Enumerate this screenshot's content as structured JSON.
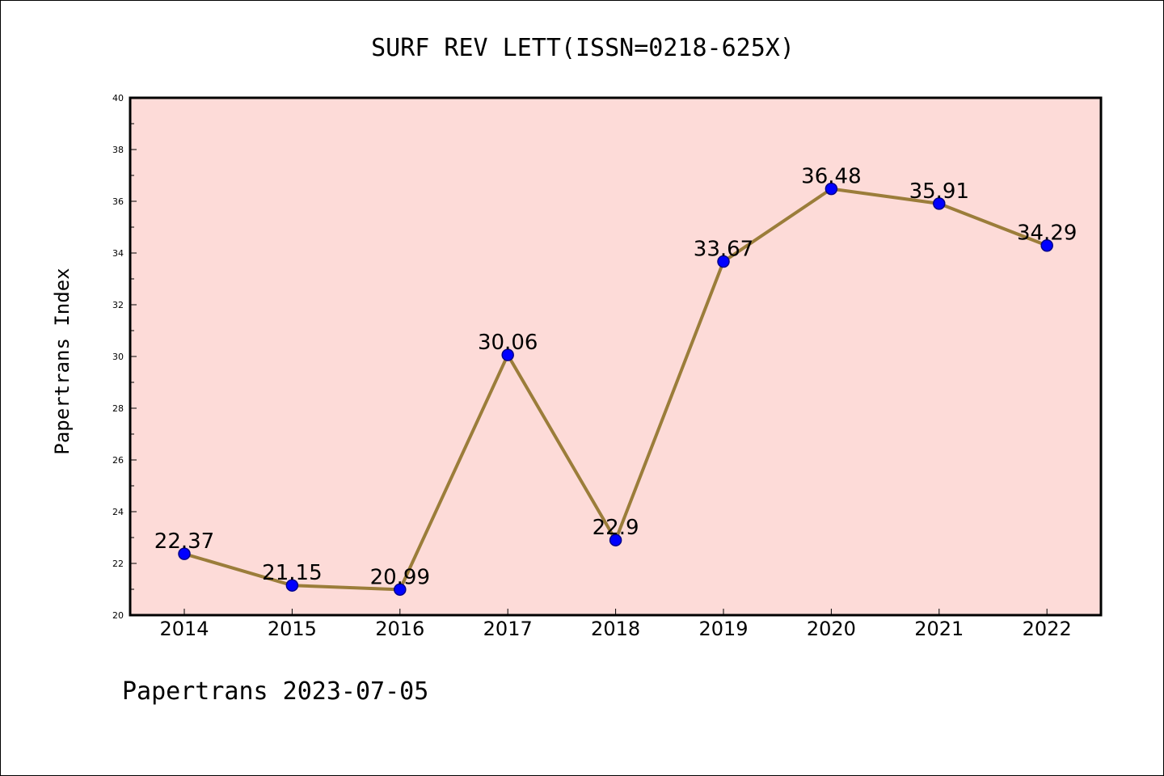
{
  "chart_data": {
    "type": "line",
    "title": "SURF REV LETT(ISSN=0218-625X)",
    "xlabel": "",
    "ylabel": "Papertrans Index",
    "categories": [
      "2014",
      "2015",
      "2016",
      "2017",
      "2018",
      "2019",
      "2020",
      "2021",
      "2022"
    ],
    "series": [
      {
        "values": [
          22.37,
          21.15,
          20.99,
          30.06,
          22.9,
          33.67,
          36.48,
          35.91,
          34.29
        ],
        "data_labels": [
          "22.37",
          "21.15",
          "20.99",
          "30.06",
          "22.9",
          "33.67",
          "36.48",
          "35.91",
          "34.29"
        ]
      }
    ],
    "ylim": [
      20,
      40
    ],
    "yticks": [
      20,
      22,
      24,
      26,
      28,
      30,
      32,
      34,
      36,
      38,
      40
    ],
    "grid": false,
    "legend": "none",
    "footer": "Papertrans 2023-07-05",
    "colors": {
      "plot_background": "#fddbd8",
      "line": "#9b7d3a",
      "marker": "#0000ff",
      "marker_edge": "#00008b"
    }
  }
}
